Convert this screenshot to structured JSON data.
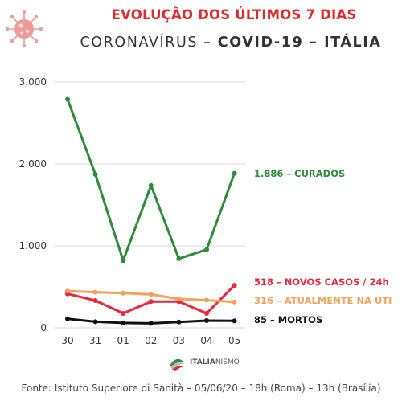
{
  "header": {
    "title": "EVOLUÇÃO DOS ÚLTIMOS 7 DIAS",
    "subtitle_prefix": "CORONAVÍRUS – ",
    "subtitle_bold": "COVID-19 – ITÁLIA"
  },
  "colors": {
    "title": "#e02a2a",
    "curados": "#2e8b3a",
    "novos_casos": "#e8283c",
    "uti": "#f4a259",
    "mortos": "#111111",
    "grid": "#d9d9d9"
  },
  "icons": {
    "virus": "coronavirus-icon",
    "logo": "italy-flag-logo"
  },
  "logo": {
    "bold": "ITALIA",
    "normal": "NISMO"
  },
  "source": "Fonte: Istituto Superiore di Sanità – 05/06/20 – 18h (Roma) – 13h (Brasília)",
  "chart_data": {
    "type": "line",
    "categories": [
      "30",
      "31",
      "01",
      "02",
      "03",
      "04",
      "05"
    ],
    "ylim": [
      0,
      3000
    ],
    "y_ticks": [
      0,
      1000,
      2000,
      3000
    ],
    "y_tick_labels": [
      "0",
      "1.000",
      "2.000",
      "3.000"
    ],
    "grid": true,
    "legend": "right-end labels",
    "series": [
      {
        "name": "CURADOS",
        "label": "1.886 – CURADOS",
        "color": "#2e8b3a",
        "values": [
          2789,
          1874,
          821,
          1737,
          844,
          955,
          1886
        ]
      },
      {
        "name": "NOVOS CASOS / 24h",
        "label": "518 – NOVOS CASOS  / 24h",
        "color": "#e8283c",
        "values": [
          416,
          333,
          177,
          321,
          321,
          177,
          518
        ]
      },
      {
        "name": "ATUALMENTE NA UTI",
        "label": "316 – ATUALMENTE NA UTI",
        "color": "#f4a259",
        "values": [
          450,
          435,
          424,
          408,
          353,
          338,
          316
        ]
      },
      {
        "name": "MORTOS",
        "label": "85 – MORTOS",
        "color": "#111111",
        "values": [
          111,
          75,
          60,
          55,
          71,
          88,
          85
        ]
      }
    ]
  }
}
